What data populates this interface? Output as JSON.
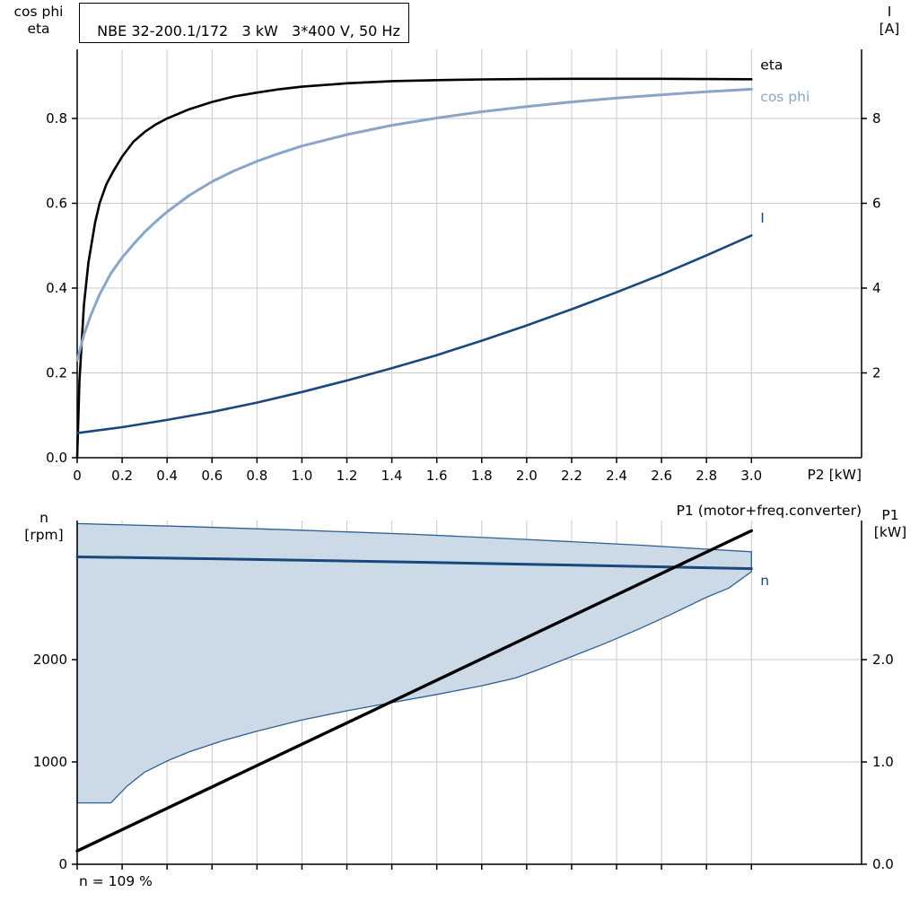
{
  "colors": {
    "grid": "#c9c9c9",
    "axis": "#000000"
  },
  "note": "n = 109 %",
  "chart_data": [
    {
      "type": "line",
      "title": "NBE 32-200.1/172   3 kW   3*400 V, 50 Hz",
      "xlabel": "P2 [kW]",
      "ylabel_left": [
        "cos phi",
        "eta"
      ],
      "ylabel_right": [
        "I",
        "[A]"
      ],
      "xlim": [
        0,
        3.49
      ],
      "ylim_left": [
        0,
        0.963
      ],
      "ylim_right": [
        0,
        9.63
      ],
      "x_ticks": [
        {
          "v": 0,
          "l": "0"
        },
        {
          "v": 0.2,
          "l": "0.2"
        },
        {
          "v": 0.4,
          "l": "0.4"
        },
        {
          "v": 0.6,
          "l": "0.6"
        },
        {
          "v": 0.8,
          "l": "0.8"
        },
        {
          "v": 1.0,
          "l": "1.0"
        },
        {
          "v": 1.2,
          "l": "1.2"
        },
        {
          "v": 1.4,
          "l": "1.4"
        },
        {
          "v": 1.6,
          "l": "1.6"
        },
        {
          "v": 1.8,
          "l": "1.8"
        },
        {
          "v": 2.0,
          "l": "2.0"
        },
        {
          "v": 2.2,
          "l": "2.2"
        },
        {
          "v": 2.4,
          "l": "2.4"
        },
        {
          "v": 2.6,
          "l": "2.6"
        },
        {
          "v": 2.8,
          "l": "2.8"
        },
        {
          "v": 3.0,
          "l": "3.0"
        }
      ],
      "y_left_ticks": [
        {
          "v": 0,
          "l": "0.0"
        },
        {
          "v": 0.2,
          "l": "0.2"
        },
        {
          "v": 0.4,
          "l": "0.4"
        },
        {
          "v": 0.6,
          "l": "0.6"
        },
        {
          "v": 0.8,
          "l": "0.8"
        }
      ],
      "y_right_ticks": [
        {
          "v": 2,
          "l": "2"
        },
        {
          "v": 4,
          "l": "4"
        },
        {
          "v": 6,
          "l": "6"
        },
        {
          "v": 8,
          "l": "8"
        }
      ],
      "series": [
        {
          "name": "eta",
          "axis": "left",
          "color": "#000000",
          "width": 2.6,
          "label": "eta",
          "label_at": [
            3.04,
            0.915
          ],
          "points": [
            [
              0,
              0
            ],
            [
              0.01,
              0.18
            ],
            [
              0.03,
              0.36
            ],
            [
              0.05,
              0.46
            ],
            [
              0.08,
              0.555
            ],
            [
              0.1,
              0.6
            ],
            [
              0.13,
              0.645
            ],
            [
              0.16,
              0.675
            ],
            [
              0.2,
              0.71
            ],
            [
              0.25,
              0.745
            ],
            [
              0.3,
              0.768
            ],
            [
              0.35,
              0.786
            ],
            [
              0.4,
              0.8
            ],
            [
              0.5,
              0.822
            ],
            [
              0.6,
              0.839
            ],
            [
              0.7,
              0.852
            ],
            [
              0.8,
              0.861
            ],
            [
              0.9,
              0.869
            ],
            [
              1.0,
              0.875
            ],
            [
              1.2,
              0.883
            ],
            [
              1.4,
              0.888
            ],
            [
              1.6,
              0.8905
            ],
            [
              1.8,
              0.892
            ],
            [
              2.0,
              0.893
            ],
            [
              2.2,
              0.8935
            ],
            [
              2.4,
              0.8935
            ],
            [
              2.6,
              0.8935
            ],
            [
              2.8,
              0.893
            ],
            [
              3.0,
              0.8925
            ]
          ]
        },
        {
          "name": "cos phi",
          "axis": "left",
          "color": "#8aa5c6",
          "width": 3.0,
          "label": "cos phi",
          "label_at": [
            3.04,
            0.84
          ],
          "points": [
            [
              0,
              0.23
            ],
            [
              0.03,
              0.29
            ],
            [
              0.06,
              0.335
            ],
            [
              0.1,
              0.385
            ],
            [
              0.15,
              0.435
            ],
            [
              0.2,
              0.472
            ],
            [
              0.25,
              0.503
            ],
            [
              0.3,
              0.532
            ],
            [
              0.35,
              0.557
            ],
            [
              0.4,
              0.58
            ],
            [
              0.5,
              0.619
            ],
            [
              0.6,
              0.651
            ],
            [
              0.7,
              0.677
            ],
            [
              0.8,
              0.699
            ],
            [
              0.9,
              0.718
            ],
            [
              1.0,
              0.735
            ],
            [
              1.2,
              0.762
            ],
            [
              1.4,
              0.784
            ],
            [
              1.6,
              0.801
            ],
            [
              1.8,
              0.816
            ],
            [
              2.0,
              0.828
            ],
            [
              2.2,
              0.839
            ],
            [
              2.4,
              0.848
            ],
            [
              2.6,
              0.856
            ],
            [
              2.8,
              0.863
            ],
            [
              3.0,
              0.869
            ]
          ]
        },
        {
          "name": "I",
          "axis": "right",
          "color": "#19497c",
          "width": 2.6,
          "label": "I",
          "label_at": [
            3.04,
            5.54
          ],
          "points": [
            [
              0,
              0.58
            ],
            [
              0.2,
              0.72
            ],
            [
              0.4,
              0.89
            ],
            [
              0.6,
              1.08
            ],
            [
              0.8,
              1.3
            ],
            [
              1.0,
              1.55
            ],
            [
              1.2,
              1.82
            ],
            [
              1.4,
              2.11
            ],
            [
              1.6,
              2.42
            ],
            [
              1.8,
              2.76
            ],
            [
              2.0,
              3.12
            ],
            [
              2.2,
              3.5
            ],
            [
              2.4,
              3.9
            ],
            [
              2.6,
              4.32
            ],
            [
              2.8,
              4.77
            ],
            [
              3.0,
              5.24
            ]
          ]
        }
      ]
    },
    {
      "type": "line",
      "xlabel": "",
      "ylabel_left": [
        "n",
        "[rpm]"
      ],
      "ylabel_right": [
        "P1",
        "[kW]"
      ],
      "annotation": "P1 (motor+freq.converter)",
      "xlim": [
        0,
        3.49
      ],
      "ylim_left": [
        0,
        3360
      ],
      "ylim_right": [
        0,
        3.36
      ],
      "x_ticks": [
        {
          "v": 0
        },
        {
          "v": 0.2
        },
        {
          "v": 0.4
        },
        {
          "v": 0.6
        },
        {
          "v": 0.8
        },
        {
          "v": 1.0
        },
        {
          "v": 1.2
        },
        {
          "v": 1.4
        },
        {
          "v": 1.6
        },
        {
          "v": 1.8
        },
        {
          "v": 2.0
        },
        {
          "v": 2.2
        },
        {
          "v": 2.4
        },
        {
          "v": 2.6
        },
        {
          "v": 2.8
        },
        {
          "v": 3.0
        }
      ],
      "y_left_ticks": [
        {
          "v": 0,
          "l": "0"
        },
        {
          "v": 1000,
          "l": "1000"
        },
        {
          "v": 2000,
          "l": "2000"
        }
      ],
      "y_right_ticks": [
        {
          "v": 0,
          "l": "0.0"
        },
        {
          "v": 1,
          "l": "1.0"
        },
        {
          "v": 2,
          "l": "2.0"
        }
      ],
      "band": {
        "axis": "left",
        "fill": "#ccd9e7",
        "edge": "#2d5f93",
        "upper": [
          [
            0,
            3330
          ],
          [
            0.5,
            3300
          ],
          [
            1.0,
            3265
          ],
          [
            1.5,
            3225
          ],
          [
            2.0,
            3175
          ],
          [
            2.5,
            3120
          ],
          [
            3.0,
            3055
          ]
        ],
        "lower": [
          [
            0,
            600
          ],
          [
            0.15,
            600
          ],
          [
            0.22,
            760
          ],
          [
            0.3,
            900
          ],
          [
            0.4,
            1010
          ],
          [
            0.5,
            1100
          ],
          [
            0.65,
            1210
          ],
          [
            0.8,
            1300
          ],
          [
            1.0,
            1410
          ],
          [
            1.2,
            1500
          ],
          [
            1.4,
            1580
          ],
          [
            1.6,
            1660
          ],
          [
            1.8,
            1745
          ],
          [
            1.95,
            1820
          ],
          [
            2.05,
            1900
          ],
          [
            2.2,
            2030
          ],
          [
            2.35,
            2160
          ],
          [
            2.5,
            2300
          ],
          [
            2.65,
            2450
          ],
          [
            2.8,
            2610
          ],
          [
            2.9,
            2700
          ],
          [
            3.0,
            2860
          ]
        ]
      },
      "series": [
        {
          "name": "n",
          "axis": "left",
          "color": "#19497c",
          "width": 3.0,
          "label": "n",
          "label_at": [
            3.04,
            2728
          ],
          "points": [
            [
              0,
              3005
            ],
            [
              0.5,
              2990
            ],
            [
              1.0,
              2972
            ],
            [
              1.5,
              2953
            ],
            [
              2.0,
              2933
            ],
            [
              2.5,
              2912
            ],
            [
              3.0,
              2890
            ]
          ]
        },
        {
          "name": "P1",
          "axis": "right",
          "color": "#000000",
          "width": 3.4,
          "points": [
            [
              0,
              0.13
            ],
            [
              3.0,
              3.26
            ]
          ]
        }
      ]
    }
  ]
}
